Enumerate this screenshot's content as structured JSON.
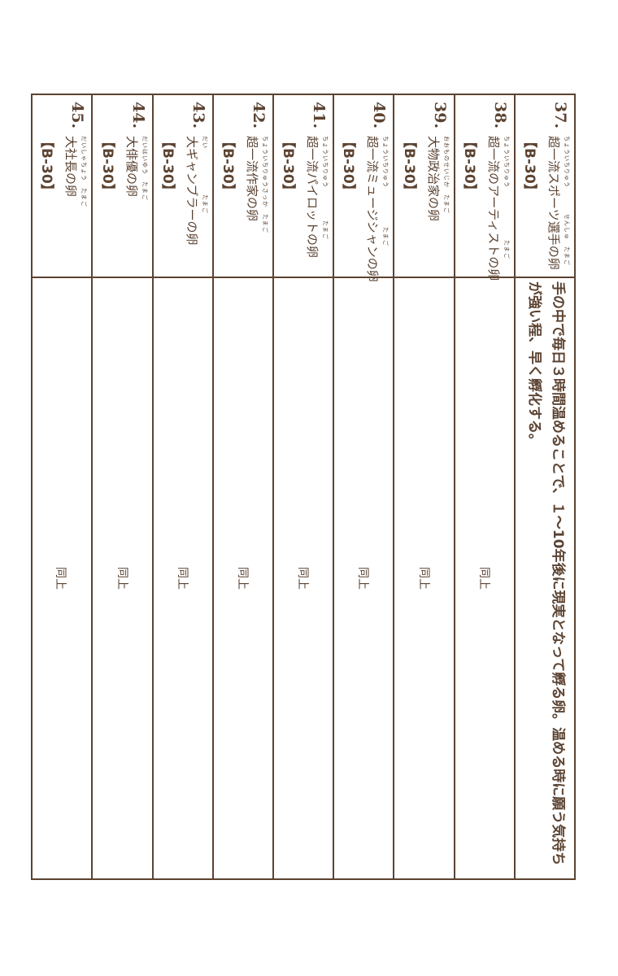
{
  "colors": {
    "line": "#5b4332",
    "text": "#5b4332"
  },
  "rows": [
    {
      "num": "37.",
      "reading": "ちょういちりゅう　　　　せんしゅ　たまご",
      "title": "超一流スポーツ選手の卵",
      "code": "【B-30】",
      "desc": "手の中で毎日３時間温めることで、１～10年後に現実となって孵る卵。温める時に願う気持ちが強い程、早く孵化する。"
    },
    {
      "num": "38.",
      "reading": "ちょういちりゅう　　　　　　　　たまご",
      "title": "超一流のアーティストの卵",
      "code": "【B-30】",
      "desc": "同上"
    },
    {
      "num": "39.",
      "reading": "おおものせいじか　たまご",
      "title": "大物政治家の卵",
      "code": "【B-30】",
      "desc": "同上"
    },
    {
      "num": "40.",
      "reading": "ちょういちりゅう　　　　　　たまご",
      "title": "超一流ミュージシャンの卵",
      "code": "【B-30】",
      "desc": "同上"
    },
    {
      "num": "41.",
      "reading": "ちょういちりゅう　　　　　たまご",
      "title": "超一流パイロットの卵",
      "code": "【B-30】",
      "desc": "同上"
    },
    {
      "num": "42.",
      "reading": "ちょういちりゅうさっか　たまご",
      "title": "超一流作家の卵",
      "code": "【B-30】",
      "desc": "同上"
    },
    {
      "num": "43.",
      "reading": "だい　　　　　　　たまご",
      "title": "大ギャンブラーの卵",
      "code": "【B-30】",
      "desc": "同上"
    },
    {
      "num": "44.",
      "reading": "だいはいゆう　たまご",
      "title": "大俳優の卵",
      "code": "【B-30】",
      "desc": "同上"
    },
    {
      "num": "45.",
      "reading": "だいしゃちょう　たまご",
      "title": "大社長の卵",
      "code": "【B-30】",
      "desc": "同上"
    }
  ]
}
